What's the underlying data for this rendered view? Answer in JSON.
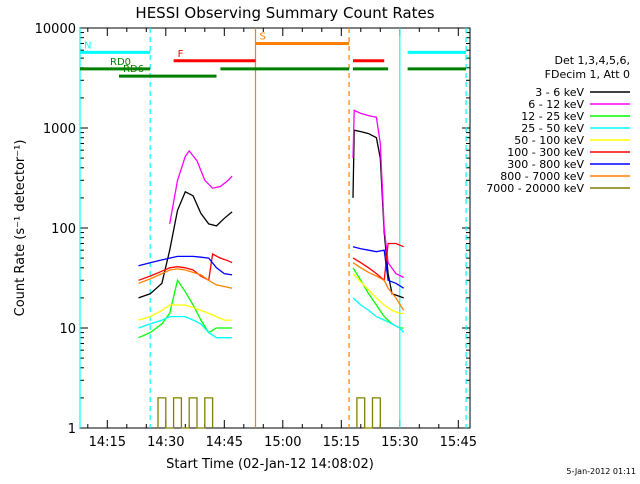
{
  "chart_data": {
    "type": "line",
    "title": "HESSI Observing Summary Count Rates",
    "xlabel": "Start Time (02-Jan-12 14:08:02)",
    "ylabel": "Count Rate (s⁻¹ detector⁻¹)",
    "y_scale": "log",
    "ylim": [
      1,
      10000
    ],
    "xlim_minutes_after_1400": [
      8,
      108
    ],
    "x_ticks": [
      {
        "min": 15,
        "label": "14:15"
      },
      {
        "min": 30,
        "label": "14:30"
      },
      {
        "min": 45,
        "label": "14:45"
      },
      {
        "min": 60,
        "label": "15:00"
      },
      {
        "min": 75,
        "label": "15:15"
      },
      {
        "min": 90,
        "label": "15:30"
      },
      {
        "min": 105,
        "label": "15:45"
      }
    ],
    "y_ticks": [
      {
        "value": 1,
        "label": "1"
      },
      {
        "value": 10,
        "label": "10"
      },
      {
        "value": 100,
        "label": "100"
      },
      {
        "value": 1000,
        "label": "1000"
      },
      {
        "value": 10000,
        "label": "10000"
      }
    ],
    "legend_header": [
      "Det 1,3,4,5,6,",
      "FDecim 1, Att 0"
    ],
    "legend_position": "right",
    "series": [
      {
        "name": "3 - 6 keV",
        "color": "#000000",
        "segments": [
          {
            "points": [
              [
                23,
                20
              ],
              [
                26,
                22
              ],
              [
                29,
                28
              ],
              [
                31,
                60
              ],
              [
                33,
                150
              ],
              [
                35,
                230
              ],
              [
                37,
                210
              ],
              [
                39,
                140
              ],
              [
                41,
                110
              ],
              [
                43,
                105
              ],
              [
                45,
                125
              ],
              [
                47,
                145
              ]
            ]
          },
          {
            "points": [
              [
                78,
                200
              ],
              [
                78.3,
                950
              ],
              [
                80,
                920
              ],
              [
                82,
                880
              ],
              [
                84,
                800
              ],
              [
                85,
                500
              ],
              [
                86,
                90
              ],
              [
                87,
                35
              ],
              [
                88,
                22
              ],
              [
                89.5,
                21
              ],
              [
                91,
                20
              ]
            ]
          }
        ]
      },
      {
        "name": "6 - 12 keV",
        "color": "#ff00ff",
        "segments": [
          {
            "points": [
              [
                31,
                110
              ],
              [
                33,
                300
              ],
              [
                35,
                520
              ],
              [
                36,
                590
              ],
              [
                38,
                470
              ],
              [
                40,
                300
              ],
              [
                42,
                250
              ],
              [
                44,
                260
              ],
              [
                46,
                300
              ],
              [
                47,
                330
              ]
            ]
          },
          {
            "points": [
              [
                78,
                500
              ],
              [
                78.3,
                1500
              ],
              [
                80,
                1400
              ],
              [
                82,
                1330
              ],
              [
                84,
                1280
              ],
              [
                85,
                700
              ],
              [
                86,
                100
              ],
              [
                87,
                45
              ],
              [
                89,
                35
              ],
              [
                91,
                32
              ]
            ]
          }
        ]
      },
      {
        "name": "12 - 25 keV",
        "color": "#00ff00",
        "segments": [
          {
            "points": [
              [
                23,
                8
              ],
              [
                26,
                9
              ],
              [
                29,
                11
              ],
              [
                31,
                14
              ],
              [
                33,
                30
              ],
              [
                35,
                23
              ],
              [
                37,
                17
              ],
              [
                39,
                12
              ],
              [
                41,
                9
              ],
              [
                43,
                10
              ],
              [
                45,
                10
              ],
              [
                47,
                10
              ]
            ]
          },
          {
            "points": [
              [
                78,
                40
              ],
              [
                80,
                30
              ],
              [
                82,
                22
              ],
              [
                84,
                17
              ],
              [
                86,
                13
              ],
              [
                88,
                11
              ],
              [
                90,
                10
              ],
              [
                91,
                10
              ]
            ]
          }
        ]
      },
      {
        "name": "25 - 50 keV",
        "color": "#00ffff",
        "segments": [
          {
            "points": [
              [
                23,
                10
              ],
              [
                26,
                11
              ],
              [
                29,
                12
              ],
              [
                31,
                13
              ],
              [
                33,
                13
              ],
              [
                35,
                13
              ],
              [
                37,
                12
              ],
              [
                39,
                11
              ],
              [
                41,
                9
              ],
              [
                43,
                8
              ],
              [
                45,
                8
              ],
              [
                47,
                8
              ]
            ]
          },
          {
            "points": [
              [
                78,
                20
              ],
              [
                80,
                17
              ],
              [
                82,
                15
              ],
              [
                84,
                13
              ],
              [
                86,
                12
              ],
              [
                88,
                11
              ],
              [
                90,
                10
              ],
              [
                91,
                9
              ]
            ]
          }
        ]
      },
      {
        "name": "50 - 100 keV",
        "color": "#ffff00",
        "segments": [
          {
            "points": [
              [
                23,
                12
              ],
              [
                26,
                13
              ],
              [
                29,
                15
              ],
              [
                31,
                17
              ],
              [
                33,
                17
              ],
              [
                35,
                17
              ],
              [
                37,
                16
              ],
              [
                39,
                15
              ],
              [
                41,
                14
              ],
              [
                43,
                13
              ],
              [
                45,
                12
              ],
              [
                47,
                12
              ]
            ]
          },
          {
            "points": [
              [
                78,
                35
              ],
              [
                80,
                29
              ],
              [
                82,
                24
              ],
              [
                84,
                20
              ],
              [
                86,
                17
              ],
              [
                88,
                15
              ],
              [
                90,
                14
              ],
              [
                91,
                14
              ]
            ]
          }
        ]
      },
      {
        "name": "100 - 300 keV",
        "color": "#ff0000",
        "segments": [
          {
            "points": [
              [
                23,
                30
              ],
              [
                26,
                33
              ],
              [
                29,
                37
              ],
              [
                31,
                40
              ],
              [
                33,
                41
              ],
              [
                35,
                40
              ],
              [
                37,
                38
              ],
              [
                39,
                33
              ],
              [
                41,
                30
              ],
              [
                42,
                55
              ],
              [
                44,
                50
              ],
              [
                46,
                47
              ],
              [
                47,
                45
              ]
            ]
          },
          {
            "points": [
              [
                78,
                50
              ],
              [
                80,
                45
              ],
              [
                82,
                40
              ],
              [
                84,
                35
              ],
              [
                86,
                30
              ],
              [
                87,
                70
              ],
              [
                89,
                70
              ],
              [
                91,
                65
              ]
            ]
          }
        ]
      },
      {
        "name": "300 - 800 keV",
        "color": "#0000ff",
        "segments": [
          {
            "points": [
              [
                23,
                42
              ],
              [
                26,
                45
              ],
              [
                29,
                48
              ],
              [
                31,
                50
              ],
              [
                33,
                52
              ],
              [
                35,
                52
              ],
              [
                37,
                52
              ],
              [
                39,
                51
              ],
              [
                41,
                50
              ],
              [
                43,
                40
              ],
              [
                45,
                35
              ],
              [
                47,
                34
              ]
            ]
          },
          {
            "points": [
              [
                78,
                65
              ],
              [
                80,
                62
              ],
              [
                82,
                60
              ],
              [
                84,
                58
              ],
              [
                86,
                60
              ],
              [
                87,
                30
              ],
              [
                89,
                28
              ],
              [
                91,
                25
              ]
            ]
          }
        ]
      },
      {
        "name": "800 - 7000 keV",
        "color": "#ff8000",
        "segments": [
          {
            "points": [
              [
                23,
                28
              ],
              [
                26,
                31
              ],
              [
                29,
                35
              ],
              [
                31,
                38
              ],
              [
                33,
                39
              ],
              [
                35,
                38
              ],
              [
                37,
                36
              ],
              [
                39,
                34
              ],
              [
                41,
                30
              ],
              [
                43,
                27
              ],
              [
                45,
                26
              ],
              [
                47,
                25
              ]
            ]
          },
          {
            "points": [
              [
                78,
                45
              ],
              [
                80,
                40
              ],
              [
                82,
                36
              ],
              [
                84,
                33
              ],
              [
                86,
                30
              ],
              [
                87,
                25
              ],
              [
                89,
                20
              ],
              [
                91,
                15
              ]
            ]
          }
        ]
      },
      {
        "name": "7000 - 20000 keV",
        "color": "#808000",
        "segments": [
          {
            "points": [
              [
                28,
                1
              ],
              [
                28,
                2
              ],
              [
                30,
                2
              ],
              [
                30,
                1
              ],
              [
                32,
                1
              ],
              [
                32,
                2
              ],
              [
                34,
                2
              ],
              [
                34,
                1
              ],
              [
                36,
                1
              ],
              [
                36,
                2
              ],
              [
                38,
                2
              ],
              [
                38,
                1
              ],
              [
                40,
                1
              ],
              [
                40,
                2
              ],
              [
                42,
                2
              ],
              [
                42,
                1
              ]
            ]
          },
          {
            "points": [
              [
                79,
                1
              ],
              [
                79,
                2
              ],
              [
                81,
                2
              ],
              [
                81,
                1
              ],
              [
                83,
                1
              ],
              [
                83,
                2
              ],
              [
                85,
                2
              ],
              [
                85,
                1
              ]
            ]
          }
        ]
      }
    ],
    "flag_bars": [
      {
        "label": "N",
        "color": "#00ffff",
        "y": 5700,
        "segments": [
          [
            8,
            26
          ],
          [
            92,
            107
          ]
        ]
      },
      {
        "label": "F",
        "color": "#ff0000",
        "y": 4700,
        "segments": [
          [
            32,
            53
          ],
          [
            78,
            86
          ]
        ]
      },
      {
        "label": "S",
        "color": "#ff8000",
        "y": 7000,
        "segments": [
          [
            53,
            77
          ]
        ]
      },
      {
        "label": "RD0",
        "color": "#008000",
        "y": 3900,
        "segments": [
          [
            8,
            26
          ],
          [
            44,
            77
          ],
          [
            78,
            87
          ],
          [
            92,
            107
          ]
        ]
      },
      {
        "label": "RD6",
        "color": "#008000",
        "y": 3300,
        "segments": [
          [
            18,
            43
          ]
        ]
      }
    ],
    "vertical_markers": [
      {
        "x": 8,
        "color": "#00ffff",
        "dashed": false
      },
      {
        "x": 26,
        "color": "#00ffff",
        "dashed": true
      },
      {
        "x": 53,
        "color": "#ff8000",
        "dashed": false
      },
      {
        "x": 77,
        "color": "#ff8000",
        "dashed": true
      },
      {
        "x": 90,
        "color": "#00ffff",
        "dashed": false
      },
      {
        "x": 107,
        "color": "#00ffff",
        "dashed": true
      }
    ],
    "footer_date": "5-Jan-2012 01:11"
  }
}
